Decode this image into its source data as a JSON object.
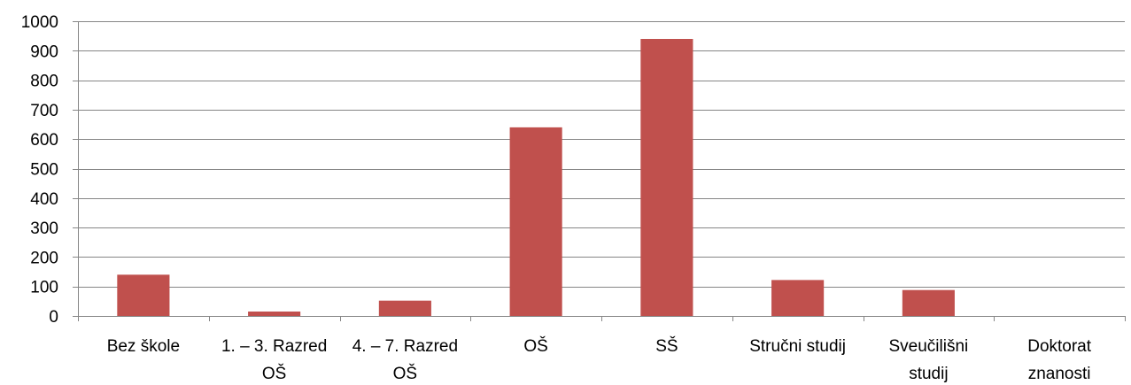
{
  "chart_data": {
    "type": "bar",
    "categories": [
      [
        "Bez škole"
      ],
      [
        "1. – 3. Razred",
        "OŠ"
      ],
      [
        "4. – 7. Razred",
        "OŠ"
      ],
      [
        "OŠ"
      ],
      [
        "SŠ"
      ],
      [
        "Stručni studij"
      ],
      [
        "Sveučilišni",
        "studij"
      ],
      [
        "Doktorat",
        "znanosti"
      ]
    ],
    "values": [
      140,
      15,
      52,
      640,
      940,
      122,
      88,
      0
    ],
    "ylim": [
      0,
      1000
    ],
    "yticks": [
      "0",
      "100",
      "200",
      "300",
      "400",
      "500",
      "600",
      "700",
      "800",
      "900",
      "1000"
    ],
    "grid": true,
    "legend": "none",
    "colors": {
      "bar": "#c0504d",
      "grid": "#868686",
      "axis": "#868686"
    }
  }
}
